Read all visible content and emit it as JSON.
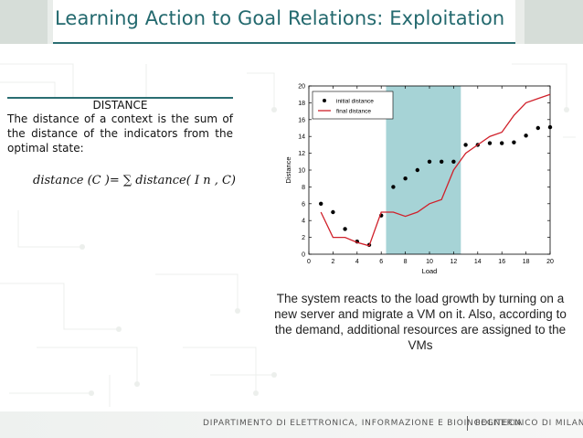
{
  "slide": {
    "title": "Learning Action to Goal Relations: Exploitation"
  },
  "definition": {
    "heading": "DISTANCE",
    "text": "The distance of a context is the sum of the distance of the indicators from the optimal state:",
    "formula": "distance (C )= ∑ distance( I n , C)"
  },
  "caption": "The system reacts to the load growth by turning on a new server and migrate a VM on it. Also, according to the demand, additional resources are assigned to the VMs",
  "footer": {
    "department": "DIPARTIMENTO DI ELETTRONICA, INFORMAZIONE E BIOINGEGNERIA",
    "university": "POLITECNICO DI MILANO"
  },
  "chart_data": {
    "type": "line",
    "xlabel": "Load",
    "ylabel": "Distance",
    "xlim": [
      0,
      20
    ],
    "ylim": [
      0,
      20
    ],
    "xticks": [
      0,
      2,
      4,
      6,
      8,
      10,
      12,
      14,
      16,
      18,
      20
    ],
    "yticks": [
      0,
      2,
      4,
      6,
      8,
      10,
      12,
      14,
      16,
      18,
      20
    ],
    "legend_position": "top-left",
    "highlight_region": {
      "x_start": 6.4,
      "x_end": 12.6,
      "color": "#a6d3d6"
    },
    "series": [
      {
        "name": "initial distance",
        "kind": "scatter",
        "color": "#000000",
        "x": [
          1,
          2,
          3,
          4,
          5,
          6,
          7,
          8,
          9,
          10,
          11,
          12,
          13,
          14,
          15,
          16,
          17,
          18,
          19,
          20
        ],
        "y": [
          6,
          5,
          3,
          1.5,
          1.1,
          4.6,
          8,
          9,
          10,
          11,
          11,
          11,
          13,
          13,
          13.2,
          13.2,
          13.3,
          14.1,
          15,
          15.1
        ]
      },
      {
        "name": "final distance",
        "kind": "line",
        "color": "#d0202a",
        "x": [
          1,
          2,
          3,
          4,
          5,
          6,
          7,
          8,
          9,
          10,
          11,
          12,
          13,
          14,
          15,
          16,
          17,
          18,
          19,
          20
        ],
        "y": [
          5,
          2,
          2,
          1.4,
          1,
          5,
          5,
          4.5,
          5,
          6,
          6.5,
          10,
          12,
          13,
          14,
          14.5,
          16.5,
          18,
          18.5,
          19
        ]
      }
    ]
  }
}
